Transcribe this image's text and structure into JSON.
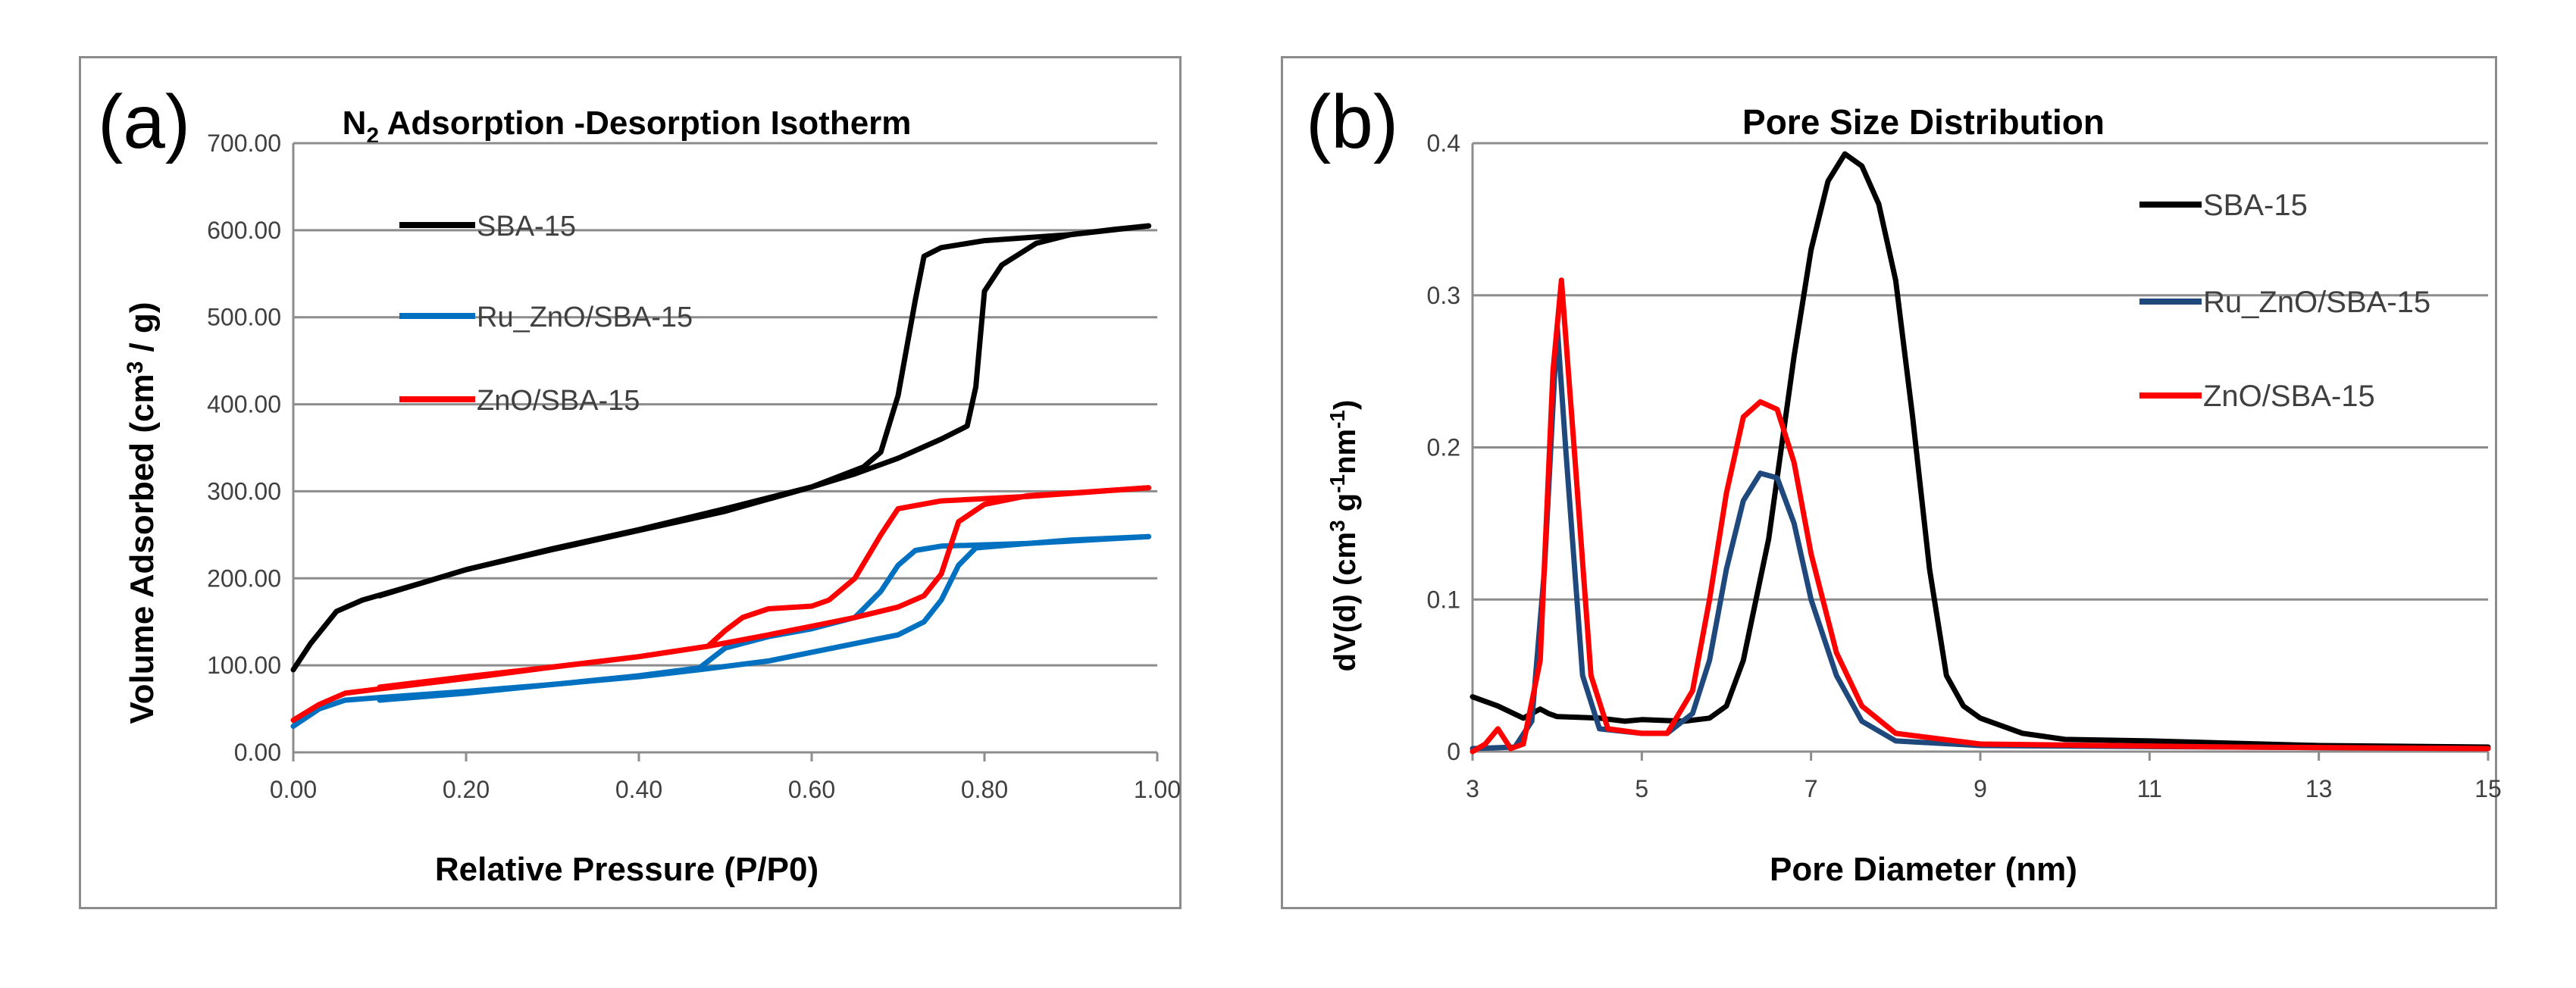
{
  "chart_data": [
    {
      "type": "line",
      "panel_label": "(a)",
      "title_main": "N",
      "title_sub": "2",
      "title_rest": " Adsorption -Desorption Isotherm",
      "xlabel": "Relative Pressure (P/P0)",
      "ylabel_main": "Volume Adsorbed (cm",
      "ylabel_sup": "3",
      "ylabel_rest": " / g)",
      "xlim": [
        0,
        1
      ],
      "ylim": [
        0,
        700
      ],
      "xticks": [
        "0.00",
        "0.20",
        "0.40",
        "0.60",
        "0.80",
        "1.00"
      ],
      "yticks": [
        "0.00",
        "100.00",
        "200.00",
        "300.00",
        "400.00",
        "500.00",
        "600.00",
        "700.00"
      ],
      "grid": "horizontal",
      "legend_position": "top-left",
      "series": [
        {
          "name": "SBA-15",
          "color": "#000000",
          "adsorption": [
            [
              0.0,
              95
            ],
            [
              0.02,
              125
            ],
            [
              0.05,
              162
            ],
            [
              0.08,
              175
            ],
            [
              0.15,
              195
            ],
            [
              0.2,
              210
            ],
            [
              0.3,
              233
            ],
            [
              0.4,
              255
            ],
            [
              0.5,
              277
            ],
            [
              0.6,
              305
            ],
            [
              0.65,
              320
            ],
            [
              0.7,
              338
            ],
            [
              0.75,
              360
            ],
            [
              0.78,
              375
            ],
            [
              0.79,
              420
            ],
            [
              0.8,
              530
            ],
            [
              0.82,
              560
            ],
            [
              0.86,
              585
            ],
            [
              0.9,
              595
            ],
            [
              0.95,
              601
            ],
            [
              0.99,
              605
            ]
          ],
          "desorption": [
            [
              0.99,
              605
            ],
            [
              0.9,
              595
            ],
            [
              0.8,
              588
            ],
            [
              0.75,
              580
            ],
            [
              0.73,
              570
            ],
            [
              0.72,
              520
            ],
            [
              0.7,
              410
            ],
            [
              0.68,
              345
            ],
            [
              0.66,
              328
            ],
            [
              0.6,
              305
            ],
            [
              0.5,
              280
            ],
            [
              0.4,
              256
            ],
            [
              0.3,
              234
            ],
            [
              0.2,
              210
            ],
            [
              0.15,
              195
            ],
            [
              0.1,
              180
            ]
          ]
        },
        {
          "name": "Ru_ZnO/SBA-15",
          "color": "#0070C0",
          "adsorption": [
            [
              0.0,
              30
            ],
            [
              0.03,
              50
            ],
            [
              0.06,
              60
            ],
            [
              0.1,
              63
            ],
            [
              0.2,
              70
            ],
            [
              0.3,
              78
            ],
            [
              0.4,
              87
            ],
            [
              0.47,
              95
            ],
            [
              0.55,
              105
            ],
            [
              0.6,
              115
            ],
            [
              0.65,
              125
            ],
            [
              0.7,
              135
            ],
            [
              0.73,
              150
            ],
            [
              0.75,
              175
            ],
            [
              0.77,
              215
            ],
            [
              0.79,
              235
            ],
            [
              0.85,
              240
            ],
            [
              0.9,
              244
            ],
            [
              0.99,
              248
            ]
          ],
          "desorption": [
            [
              0.99,
              248
            ],
            [
              0.85,
              240
            ],
            [
              0.75,
              237
            ],
            [
              0.72,
              232
            ],
            [
              0.7,
              215
            ],
            [
              0.68,
              185
            ],
            [
              0.65,
              155
            ],
            [
              0.6,
              142
            ],
            [
              0.55,
              133
            ],
            [
              0.5,
              120
            ],
            [
              0.47,
              97
            ],
            [
              0.4,
              88
            ],
            [
              0.3,
              78
            ],
            [
              0.2,
              68
            ],
            [
              0.1,
              60
            ]
          ]
        },
        {
          "name": "ZnO/SBA-15",
          "color": "#FF0000",
          "adsorption": [
            [
              0.0,
              37
            ],
            [
              0.03,
              55
            ],
            [
              0.06,
              68
            ],
            [
              0.1,
              73
            ],
            [
              0.2,
              85
            ],
            [
              0.3,
              98
            ],
            [
              0.4,
              110
            ],
            [
              0.48,
              122
            ],
            [
              0.55,
              135
            ],
            [
              0.6,
              145
            ],
            [
              0.65,
              155
            ],
            [
              0.7,
              167
            ],
            [
              0.73,
              180
            ],
            [
              0.75,
              205
            ],
            [
              0.77,
              265
            ],
            [
              0.8,
              285
            ],
            [
              0.85,
              295
            ],
            [
              0.9,
              298
            ],
            [
              0.99,
              304
            ]
          ],
          "desorption": [
            [
              0.99,
              304
            ],
            [
              0.85,
              294
            ],
            [
              0.75,
              289
            ],
            [
              0.7,
              280
            ],
            [
              0.68,
              250
            ],
            [
              0.65,
              200
            ],
            [
              0.62,
              175
            ],
            [
              0.6,
              168
            ],
            [
              0.55,
              165
            ],
            [
              0.52,
              155
            ],
            [
              0.5,
              140
            ],
            [
              0.48,
              122
            ],
            [
              0.4,
              110
            ],
            [
              0.3,
              98
            ],
            [
              0.2,
              87
            ],
            [
              0.1,
              75
            ]
          ]
        }
      ]
    },
    {
      "type": "line",
      "panel_label": "(b)",
      "title": "Pore Size Distribution",
      "xlabel": "Pore Diameter (nm)",
      "ylabel_main": "dV(d) (cm",
      "ylabel_sup": "3",
      "ylabel_mid": " g",
      "ylabel_sup2": "-1",
      "ylabel_mid2": "nm",
      "ylabel_sup3": "-1",
      "ylabel_rest": ")",
      "xlim": [
        3,
        15
      ],
      "ylim": [
        0,
        0.4
      ],
      "xticks": [
        "3",
        "5",
        "7",
        "9",
        "11",
        "13",
        "15"
      ],
      "yticks": [
        "0",
        "0.1",
        "0.2",
        "0.3",
        "0.4"
      ],
      "grid": "horizontal",
      "legend_position": "right",
      "series": [
        {
          "name": "SBA-15",
          "color": "#000000",
          "points": [
            [
              3.0,
              0.036
            ],
            [
              3.3,
              0.03
            ],
            [
              3.6,
              0.022
            ],
            [
              3.8,
              0.028
            ],
            [
              3.9,
              0.025
            ],
            [
              4.0,
              0.023
            ],
            [
              4.5,
              0.022
            ],
            [
              4.8,
              0.02
            ],
            [
              5.0,
              0.021
            ],
            [
              5.5,
              0.02
            ],
            [
              5.8,
              0.022
            ],
            [
              6.0,
              0.03
            ],
            [
              6.2,
              0.06
            ],
            [
              6.5,
              0.14
            ],
            [
              6.8,
              0.26
            ],
            [
              7.0,
              0.33
            ],
            [
              7.2,
              0.375
            ],
            [
              7.4,
              0.393
            ],
            [
              7.6,
              0.385
            ],
            [
              7.8,
              0.36
            ],
            [
              8.0,
              0.31
            ],
            [
              8.2,
              0.22
            ],
            [
              8.4,
              0.12
            ],
            [
              8.6,
              0.05
            ],
            [
              8.8,
              0.03
            ],
            [
              9.0,
              0.022
            ],
            [
              9.5,
              0.012
            ],
            [
              10.0,
              0.008
            ],
            [
              11.0,
              0.007
            ],
            [
              13.0,
              0.004
            ],
            [
              15.0,
              0.003
            ]
          ]
        },
        {
          "name": "Ru_ZnO/SBA-15",
          "color": "#1F497D",
          "points": [
            [
              3.0,
              0.002
            ],
            [
              3.5,
              0.003
            ],
            [
              3.7,
              0.02
            ],
            [
              3.85,
              0.12
            ],
            [
              4.0,
              0.28
            ],
            [
              4.1,
              0.2
            ],
            [
              4.3,
              0.05
            ],
            [
              4.5,
              0.015
            ],
            [
              5.0,
              0.012
            ],
            [
              5.3,
              0.012
            ],
            [
              5.6,
              0.025
            ],
            [
              5.8,
              0.06
            ],
            [
              6.0,
              0.12
            ],
            [
              6.2,
              0.165
            ],
            [
              6.4,
              0.183
            ],
            [
              6.6,
              0.18
            ],
            [
              6.8,
              0.15
            ],
            [
              7.0,
              0.1
            ],
            [
              7.3,
              0.05
            ],
            [
              7.6,
              0.02
            ],
            [
              8.0,
              0.007
            ],
            [
              9.0,
              0.004
            ],
            [
              12.0,
              0.003
            ],
            [
              15.0,
              0.002
            ]
          ]
        },
        {
          "name": "ZnO/SBA-15",
          "color": "#FF0000",
          "points": [
            [
              3.0,
              0.0
            ],
            [
              3.15,
              0.005
            ],
            [
              3.3,
              0.015
            ],
            [
              3.45,
              0.002
            ],
            [
              3.6,
              0.005
            ],
            [
              3.8,
              0.06
            ],
            [
              3.95,
              0.25
            ],
            [
              4.05,
              0.31
            ],
            [
              4.2,
              0.2
            ],
            [
              4.4,
              0.05
            ],
            [
              4.6,
              0.015
            ],
            [
              5.0,
              0.012
            ],
            [
              5.3,
              0.012
            ],
            [
              5.6,
              0.04
            ],
            [
              5.8,
              0.1
            ],
            [
              6.0,
              0.17
            ],
            [
              6.2,
              0.22
            ],
            [
              6.4,
              0.23
            ],
            [
              6.6,
              0.225
            ],
            [
              6.8,
              0.19
            ],
            [
              7.0,
              0.13
            ],
            [
              7.3,
              0.065
            ],
            [
              7.6,
              0.03
            ],
            [
              8.0,
              0.012
            ],
            [
              9.0,
              0.005
            ],
            [
              12.0,
              0.003
            ],
            [
              15.0,
              0.002
            ]
          ]
        }
      ]
    }
  ]
}
